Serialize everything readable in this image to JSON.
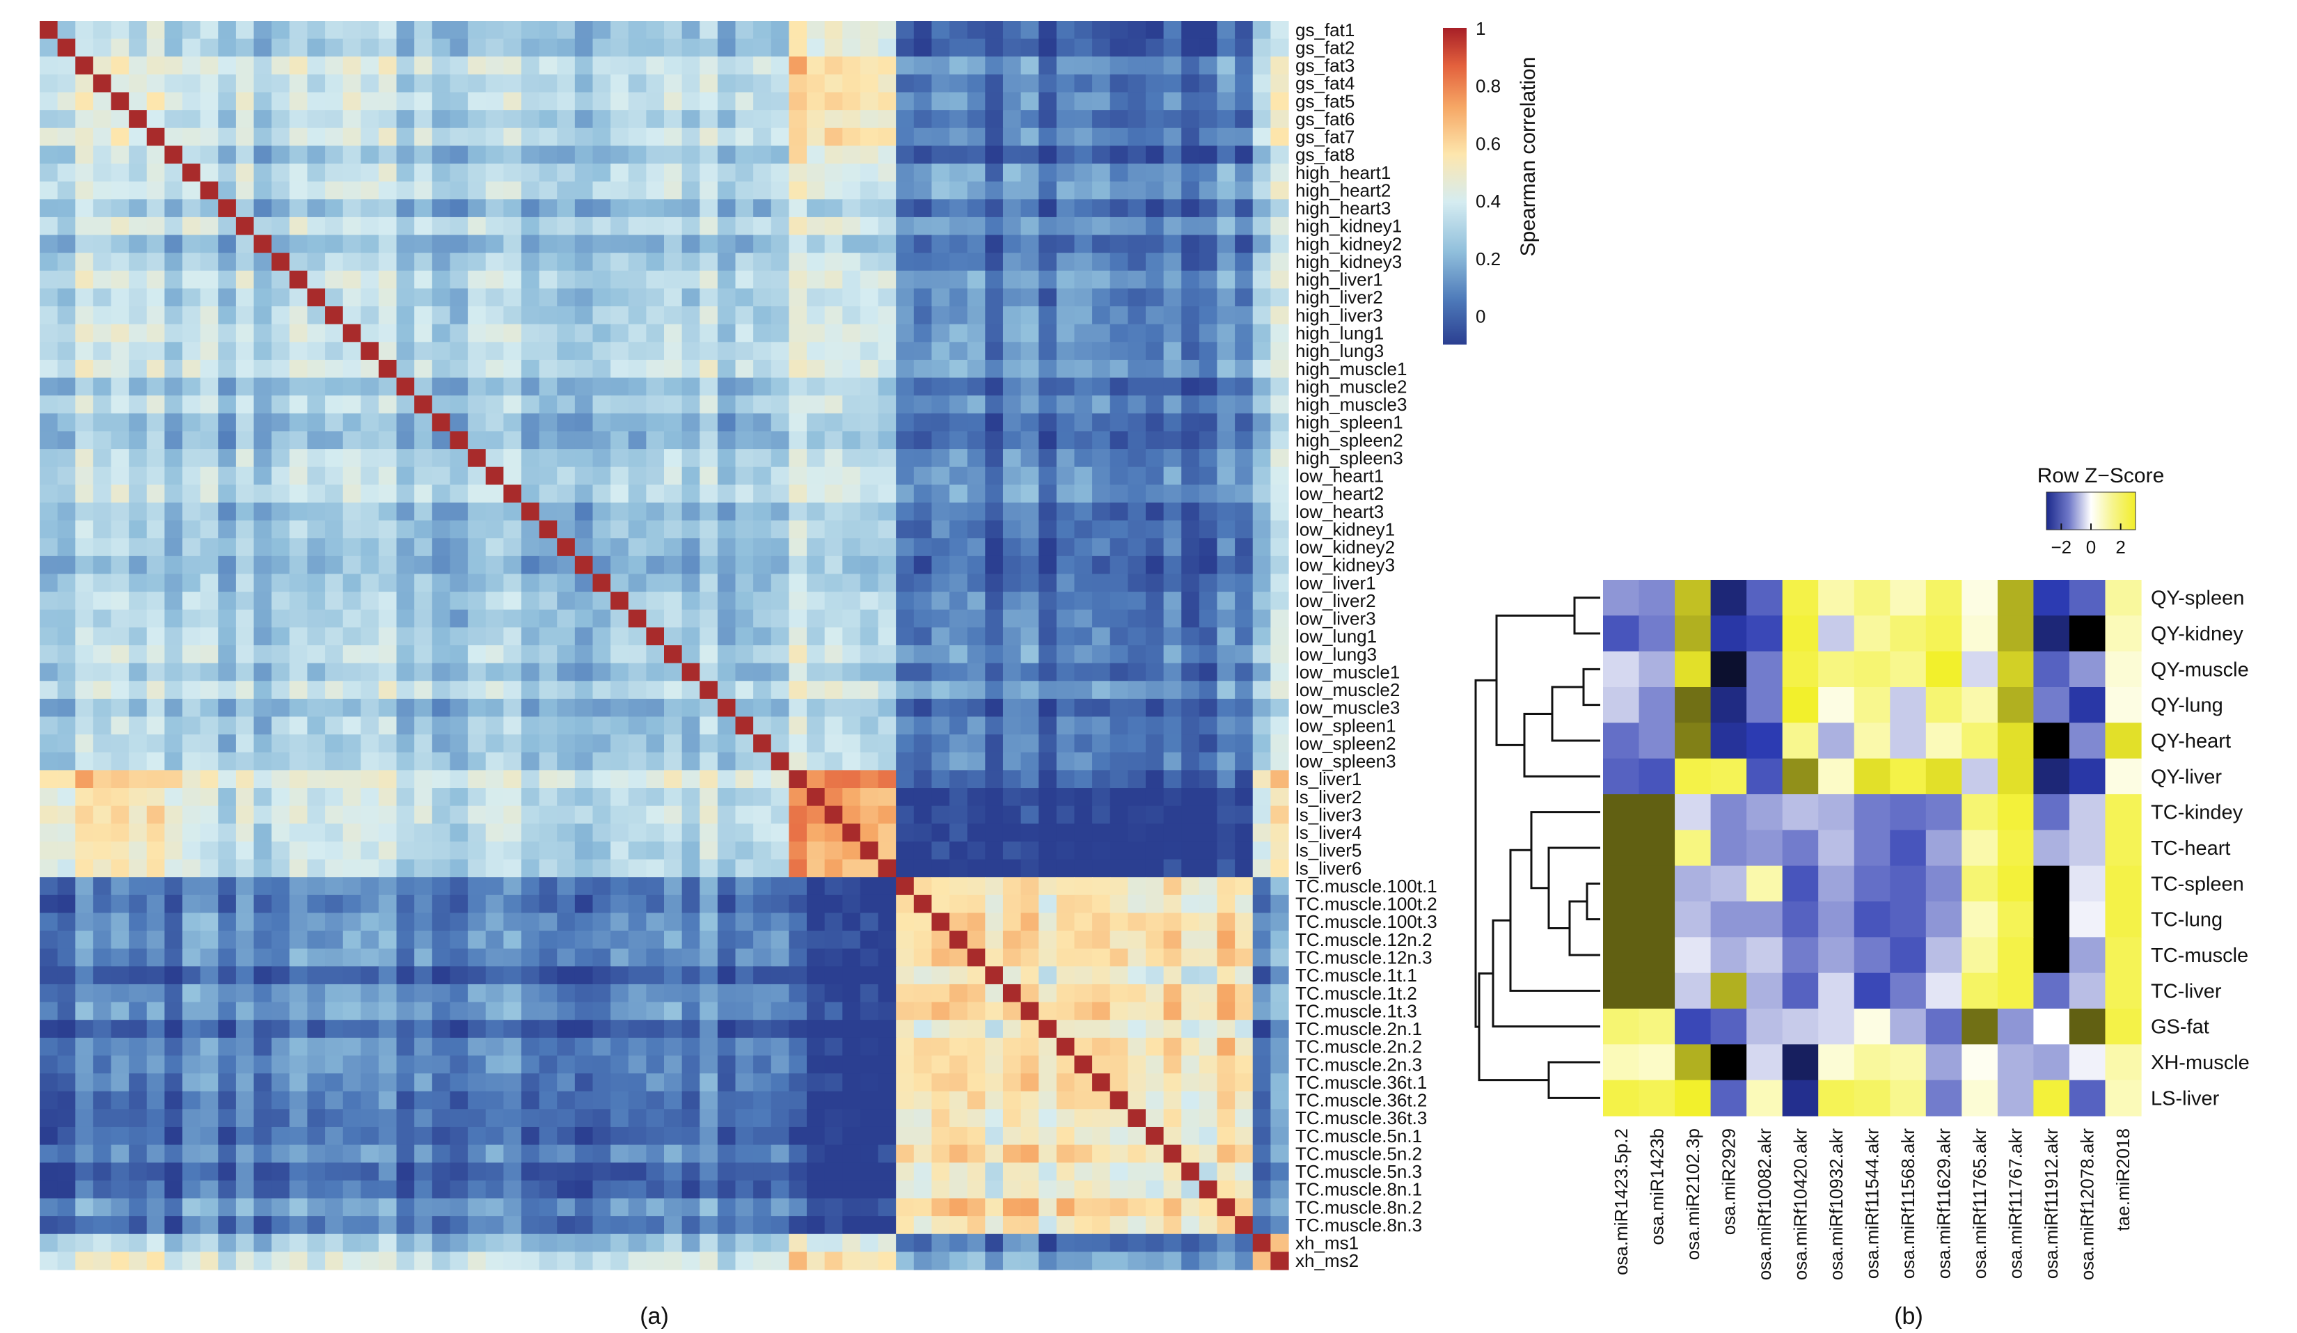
{
  "figure": {
    "panel_a_label": "(a)",
    "panel_b_label": "(b)"
  },
  "colors": {
    "corr_scale": [
      "#2b3f91",
      "#4d79b9",
      "#8fbedb",
      "#d5ecf1",
      "#fde6ad",
      "#f6a765",
      "#e3613d",
      "#a71f27"
    ],
    "z_scale": [
      "#000000",
      "#2c3bb2",
      "#ffffff",
      "#f2f02c",
      "#000000"
    ],
    "diag": "#a82b2b"
  },
  "chart_data": [
    {
      "type": "heatmap",
      "id": "correlation",
      "title": "",
      "legend_title": "Spearman correlation",
      "legend_ticks": [
        "1",
        "0.8",
        "0.6",
        "0.4",
        "0.2",
        "0"
      ],
      "legend_range": [
        -0.1,
        1.0
      ],
      "labels": [
        "gs_fat1",
        "gs_fat2",
        "gs_fat3",
        "gs_fat4",
        "gs_fat5",
        "gs_fat6",
        "gs_fat7",
        "gs_fat8",
        "high_heart1",
        "high_heart2",
        "high_heart3",
        "high_kidney1",
        "high_kidney2",
        "high_kidney3",
        "high_liver1",
        "high_liver2",
        "high_liver3",
        "high_lung1",
        "high_lung3",
        "high_muscle1",
        "high_muscle2",
        "high_muscle3",
        "high_spleen1",
        "high_spleen2",
        "high_spleen3",
        "low_heart1",
        "low_heart2",
        "low_heart3",
        "low_kidney1",
        "low_kidney2",
        "low_kidney3",
        "low_liver1",
        "low_liver2",
        "low_liver3",
        "low_lung1",
        "low_lung3",
        "low_muscle1",
        "low_muscle2",
        "low_muscle3",
        "low_spleen1",
        "low_spleen2",
        "low_spleen3",
        "ls_liver1",
        "ls_liver2",
        "ls_liver3",
        "ls_liver4",
        "ls_liver5",
        "ls_liver6",
        "TC.muscle.100t.1",
        "TC.muscle.100t.2",
        "TC.muscle.100t.3",
        "TC.muscle.12n.2",
        "TC.muscle.12n.3",
        "TC.muscle.1t.1",
        "TC.muscle.1t.2",
        "TC.muscle.1t.3",
        "TC.muscle.2n.1",
        "TC.muscle.2n.2",
        "TC.muscle.2n.3",
        "TC.muscle.36t.1",
        "TC.muscle.36t.2",
        "TC.muscle.36t.3",
        "TC.muscle.5n.1",
        "TC.muscle.5n.2",
        "TC.muscle.5n.3",
        "TC.muscle.8n.1",
        "TC.muscle.8n.2",
        "TC.muscle.8n.3",
        "xh_ms1",
        "xh_ms2"
      ],
      "groups": [
        "G",
        "G",
        "G",
        "G",
        "G",
        "G",
        "G",
        "G",
        "H",
        "H",
        "H",
        "H",
        "H",
        "H",
        "H",
        "H",
        "H",
        "H",
        "H",
        "H",
        "H",
        "H",
        "H",
        "H",
        "H",
        "H",
        "H",
        "H",
        "H",
        "H",
        "H",
        "H",
        "H",
        "H",
        "H",
        "H",
        "H",
        "H",
        "H",
        "H",
        "H",
        "H",
        "L",
        "L",
        "L",
        "L",
        "L",
        "L",
        "T",
        "T",
        "T",
        "T",
        "T",
        "T",
        "T",
        "T",
        "T",
        "T",
        "T",
        "T",
        "T",
        "T",
        "T",
        "T",
        "T",
        "T",
        "T",
        "T",
        "X",
        "X"
      ],
      "block_means": {
        "G-G": 0.4,
        "G-H": 0.3,
        "G-L": 0.56,
        "G-T": 0.04,
        "G-X": 0.36,
        "H-H": 0.26,
        "H-L": 0.38,
        "H-T": 0.06,
        "H-X": 0.28,
        "L-L": 0.8,
        "L-T": -0.05,
        "L-X": 0.5,
        "T-T": 0.5,
        "T-X": 0.08,
        "X-X": 0.55
      },
      "diagonal": 1.0
    },
    {
      "type": "heatmap",
      "id": "row_zscore",
      "legend_title": "Row Z−Score",
      "legend_ticks": [
        "−2",
        "0",
        "2"
      ],
      "legend_range": [
        -3,
        3
      ],
      "rows": [
        "QY-spleen",
        "QY-kidney",
        "QY-muscle",
        "QY-lung",
        "QY-heart",
        "QY-liver",
        "TC-kindey",
        "TC-heart",
        "TC-spleen",
        "TC-lung",
        "TC-muscle",
        "TC-liver",
        "GS-fat",
        "XH-muscle",
        "LS-liver"
      ],
      "columns": [
        "osa.miR1423.5p.2",
        "osa.miR1423b",
        "osa.miR2102.3p",
        "osa.miR2929",
        "osa.miRf10082.akr",
        "osa.miRf10420.akr",
        "osa.miRf10932.akr",
        "osa.miRf11544.akr",
        "osa.miRf11568.akr",
        "osa.miRf11629.akr",
        "osa.miRf11765.akr",
        "osa.miRf11767.akr",
        "osa.miRf11912.akr",
        "osa.miRf12078.akr",
        "tae.miR2018"
      ],
      "values": [
        [
          -0.8,
          -0.9,
          1.8,
          -2.0,
          -1.2,
          1.3,
          0.6,
          0.9,
          0.5,
          1.1,
          0.2,
          1.9,
          -1.5,
          -1.2,
          0.7
        ],
        [
          -1.3,
          -1.0,
          1.9,
          -1.6,
          -1.4,
          1.4,
          -0.4,
          0.7,
          1.0,
          1.2,
          0.3,
          1.9,
          -2.0,
          3.5,
          0.5
        ],
        [
          -0.3,
          -0.6,
          1.6,
          -2.6,
          -1.0,
          1.3,
          0.9,
          1.0,
          0.8,
          1.5,
          -0.3,
          1.7,
          -1.2,
          -0.8,
          0.3
        ],
        [
          -0.4,
          -0.9,
          2.3,
          -1.9,
          -1.0,
          1.5,
          0.2,
          0.8,
          -0.4,
          1.0,
          0.6,
          1.9,
          -1.0,
          -1.6,
          0.2
        ],
        [
          -1.1,
          -0.9,
          2.2,
          -1.7,
          -1.5,
          0.8,
          -0.6,
          0.6,
          -0.4,
          0.5,
          1.0,
          1.6,
          3.5,
          -0.9,
          1.6
        ],
        [
          -1.2,
          -1.3,
          1.3,
          1.2,
          -1.3,
          2.1,
          0.4,
          1.6,
          1.3,
          1.6,
          -0.4,
          1.6,
          -2.0,
          -1.6,
          0.2
        ],
        [
          2.4,
          2.4,
          -0.3,
          -0.9,
          -0.7,
          -0.5,
          -0.6,
          -1.0,
          -1.1,
          -1.0,
          1.0,
          1.4,
          -1.1,
          -0.4,
          1.2
        ],
        [
          2.4,
          2.4,
          0.9,
          -0.9,
          -0.8,
          -1.0,
          -0.5,
          -1.0,
          -1.3,
          -0.7,
          0.6,
          1.3,
          -0.6,
          -0.4,
          1.2
        ],
        [
          2.4,
          2.4,
          -0.6,
          -0.5,
          0.6,
          -1.3,
          -0.7,
          -1.1,
          -1.2,
          -0.9,
          1.0,
          1.4,
          3.5,
          -0.2,
          1.3
        ],
        [
          2.4,
          2.4,
          -0.5,
          -0.8,
          -0.8,
          -1.2,
          -0.8,
          -1.3,
          -1.2,
          -0.8,
          0.5,
          1.2,
          3.5,
          -0.1,
          1.3
        ],
        [
          2.4,
          2.4,
          -0.2,
          -0.6,
          -0.4,
          -1.0,
          -0.7,
          -1.0,
          -1.3,
          -0.5,
          0.7,
          1.3,
          3.5,
          -0.7,
          1.2
        ],
        [
          2.4,
          2.4,
          -0.4,
          1.9,
          -0.6,
          -1.2,
          -0.3,
          -1.4,
          -1.0,
          -0.2,
          1.1,
          1.3,
          -1.1,
          -0.5,
          1.2
        ],
        [
          1.0,
          0.9,
          -1.4,
          -1.2,
          -0.5,
          -0.4,
          -0.3,
          0.2,
          -0.6,
          -1.1,
          2.3,
          -0.8,
          0.0,
          2.4,
          1.3
        ],
        [
          0.5,
          0.4,
          1.9,
          3.5,
          -0.3,
          -2.2,
          0.3,
          0.7,
          0.6,
          -0.7,
          0.1,
          -0.6,
          -0.7,
          -0.1,
          0.6
        ],
        [
          1.3,
          1.2,
          1.5,
          -1.2,
          0.5,
          -1.8,
          1.2,
          1.1,
          0.8,
          -1.0,
          0.3,
          -0.6,
          1.4,
          -1.2,
          0.5
        ]
      ],
      "dendrogram_leaf_order": [
        "QY-spleen",
        "QY-kidney",
        "QY-muscle",
        "QY-lung",
        "QY-heart",
        "QY-liver",
        "TC-kindey",
        "TC-heart",
        "TC-spleen",
        "TC-lung",
        "TC-muscle",
        "TC-liver",
        "GS-fat",
        "XH-muscle",
        "LS-liver"
      ]
    }
  ]
}
